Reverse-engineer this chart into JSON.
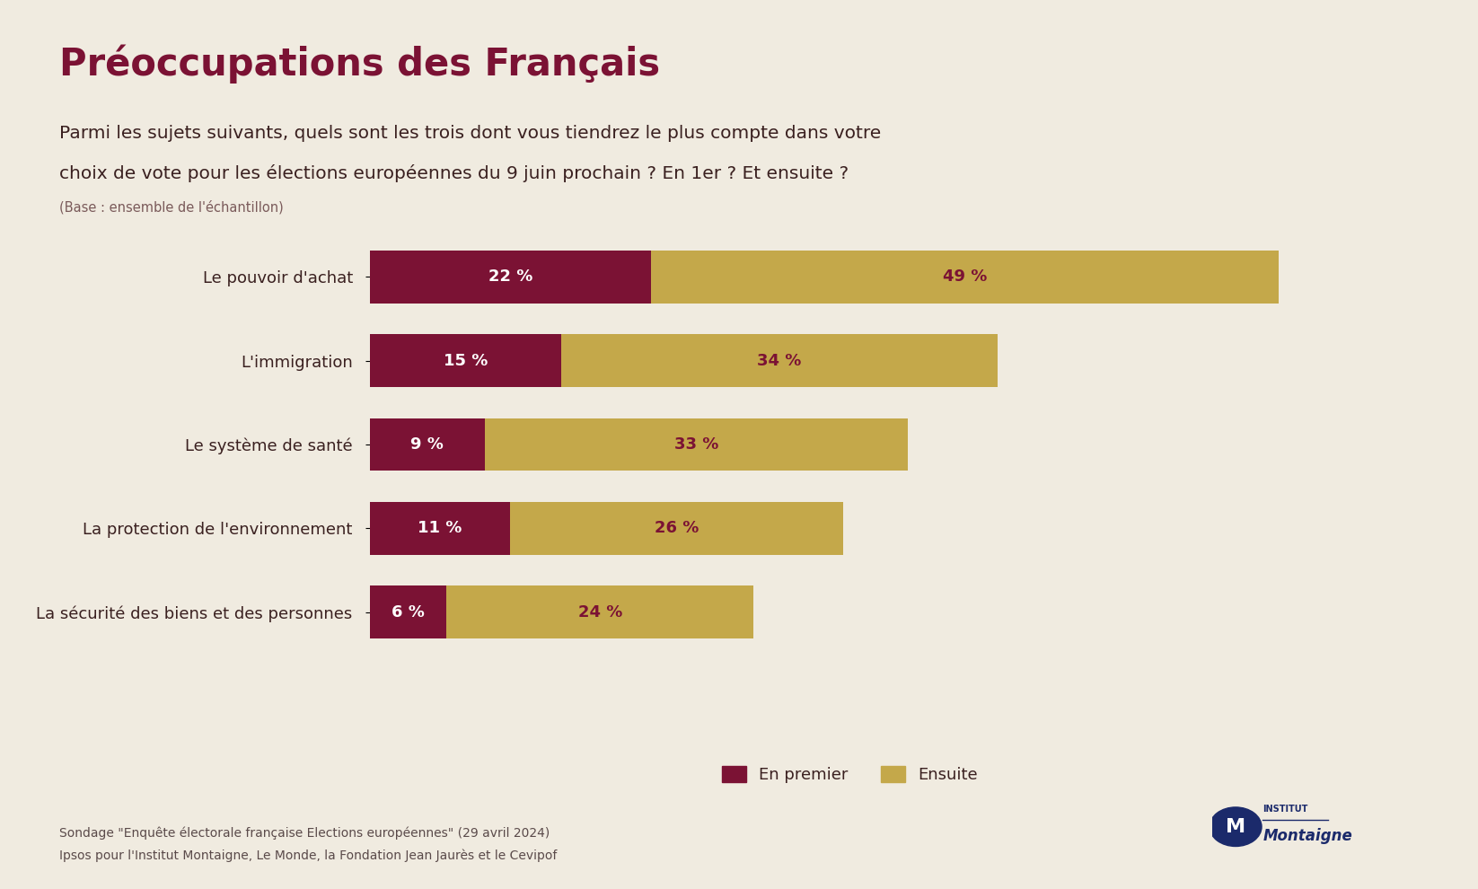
{
  "title": "Préoccupations des Français",
  "subtitle_line1": "Parmi les sujets suivants, quels sont les trois dont vous tiendrez le plus compte dans votre",
  "subtitle_line2": "choix de vote pour les élections européennes du 9 juin prochain ? En 1er ? Et ensuite ?",
  "subtitle_note": "(Base : ensemble de l'échantillon)",
  "categories": [
    "Le pouvoir d'achat",
    "L'immigration",
    "Le système de santé",
    "La protection de l'environnement",
    "La sécurité des biens et des personnes"
  ],
  "en_premier": [
    22,
    15,
    9,
    11,
    6
  ],
  "ensuite": [
    49,
    34,
    33,
    26,
    24
  ],
  "color_premier": "#7B1234",
  "color_ensuite": "#C4A84A",
  "background_color": "#F0EBE0",
  "text_color_dark": "#7B1234",
  "text_color_label": "#5A3A3A",
  "footer_line1": "Sondage \"Enquête électorale française Elections européennes\" (29 avril 2024)",
  "footer_line2": "Ipsos pour l'Institut Montaigne, Le Monde, la Fondation Jean Jaurès et le Cevipof",
  "legend_premier": "En premier",
  "legend_ensuite": "Ensuite",
  "bar_height": 0.35,
  "xlim": [
    0,
    75
  ]
}
